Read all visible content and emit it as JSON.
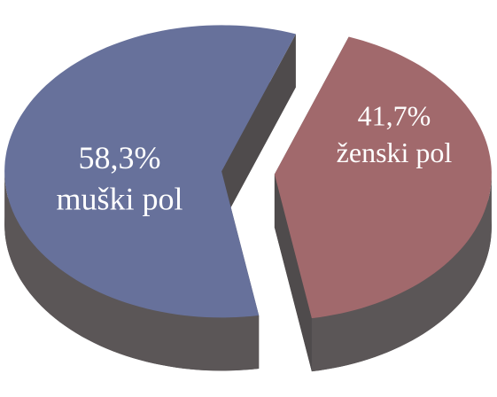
{
  "chart_data": {
    "type": "pie3d",
    "categories": [
      "muški pol",
      "ženski pol"
    ],
    "values": [
      58.3,
      41.7
    ],
    "value_labels": [
      "58,3%",
      "41,7%"
    ],
    "colors": [
      "#67719b",
      "#a1696c"
    ]
  }
}
